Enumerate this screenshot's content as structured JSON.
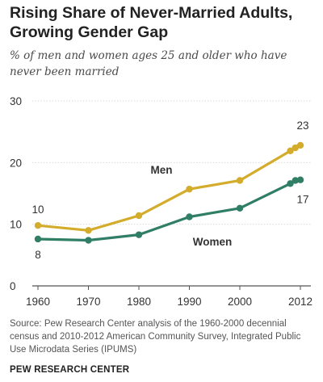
{
  "title_line1": "Rising Share of Never-Married Adults,",
  "title_line2": "Growing Gender Gap",
  "subtitle": "% of men and women ages 25 and older who have never been married",
  "source_text": "Source: Pew Research Center analysis of the 1960-2000 decennial census and 2010-2012 American Community Survey, Integrated Public Use Microdata Series (IPUMS)",
  "org_name": "PEW RESEARCH CENTER",
  "colors": {
    "men": "#d4ac2b",
    "women": "#2f7e65",
    "gridline": "#d9d9d9",
    "axis": "#555555"
  },
  "chart_data": {
    "type": "line",
    "title": "Rising Share of Never-Married Adults, Growing Gender Gap",
    "subtitle": "% of men and women ages 25 and older who have never been married",
    "x": [
      1960,
      1970,
      1980,
      1990,
      2000,
      2010,
      2011,
      2012
    ],
    "x_tick_labels": [
      "1960",
      "1970",
      "1980",
      "1990",
      "2000",
      "2012"
    ],
    "x_tick_values": [
      1960,
      1970,
      1980,
      1990,
      2000,
      2012
    ],
    "y_ticks": [
      0,
      10,
      20,
      30
    ],
    "ylim": [
      0,
      30
    ],
    "grid": "horizontal",
    "series": [
      {
        "name": "Men",
        "color": "#d4ac2b",
        "values": [
          9.8,
          9.0,
          11.4,
          15.7,
          17.1,
          21.9,
          22.4,
          22.8
        ]
      },
      {
        "name": "Women",
        "color": "#2f7e65",
        "values": [
          7.6,
          7.4,
          8.3,
          11.2,
          12.6,
          16.6,
          17.1,
          17.2
        ]
      }
    ],
    "data_labels": [
      {
        "text": "10",
        "series": "Men",
        "x": 1960
      },
      {
        "text": "8",
        "series": "Women",
        "x": 1960
      },
      {
        "text": "23",
        "series": "Men",
        "x": 2012
      },
      {
        "text": "17",
        "series": "Women",
        "x": 2012
      }
    ]
  }
}
